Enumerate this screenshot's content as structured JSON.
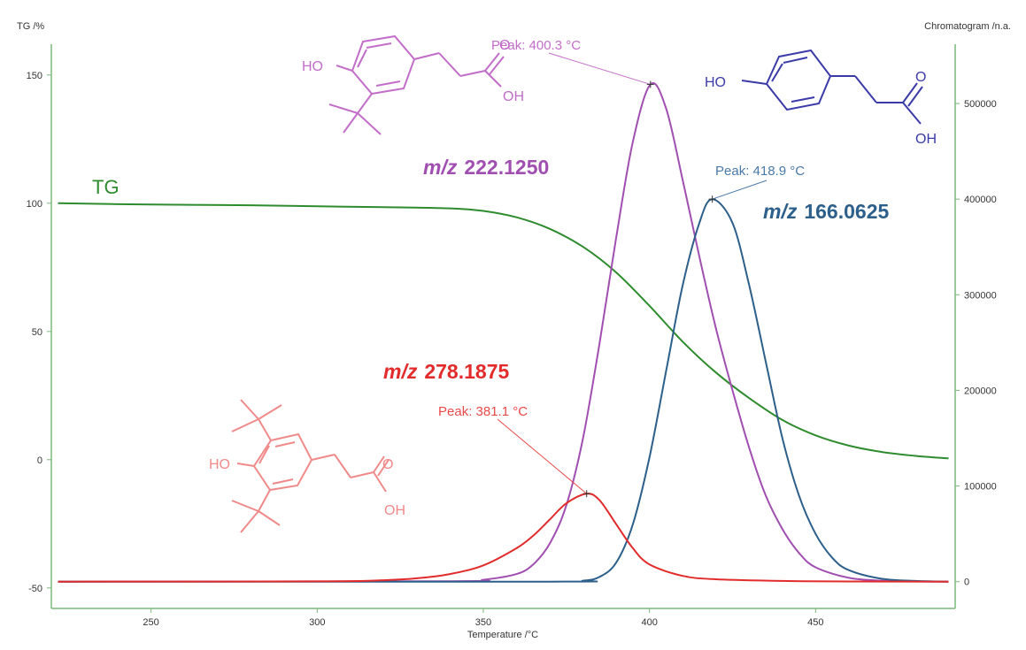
{
  "chart_data": {
    "type": "line",
    "x_axis_title": "Temperature /°C",
    "y_left_title": "TG /%",
    "y_right_title": "Chromatogram /n.a.",
    "xlim": [
      220,
      492
    ],
    "ylim_left": [
      -58,
      162
    ],
    "ylim_right": [
      -28000,
      562000
    ],
    "x_ticks": [
      "250",
      "300",
      "350",
      "400",
      "450"
    ],
    "y_left_ticks": [
      "150",
      "100",
      "50",
      "0",
      "-50"
    ],
    "y_right_ticks": [
      "500000",
      "400000",
      "300000",
      "200000",
      "100000",
      "0"
    ],
    "series": [
      {
        "name": "TG",
        "axis": "left",
        "color": "#2e8b2e",
        "x": [
          222,
          250,
          280,
          300,
          320,
          340,
          350,
          360,
          370,
          380,
          390,
          400,
          410,
          420,
          430,
          440,
          450,
          460,
          470,
          480,
          490
        ],
        "y": [
          100,
          99.5,
          99.2,
          98.8,
          98.5,
          98,
          97,
          94.5,
          90,
          83,
          73,
          60,
          46,
          34,
          24,
          15.5,
          9.5,
          5.5,
          3,
          1.5,
          0.5
        ]
      },
      {
        "name": "m/z 222.1250",
        "axis": "right",
        "color": "#a04fb0",
        "x": [
          222,
          340,
          350,
          360,
          365,
          370,
          375,
          380,
          385,
          390,
          395,
          400.3,
          405,
          410,
          415,
          420,
          425,
          430,
          435,
          440,
          445,
          450,
          460,
          470,
          480,
          490
        ],
        "y": [
          0,
          500,
          2000,
          8000,
          18000,
          40000,
          80000,
          150000,
          250000,
          360000,
          460000,
          520000,
          495000,
          420000,
          340000,
          265000,
          200000,
          140000,
          90000,
          55000,
          30000,
          15000,
          4000,
          1000,
          300,
          0
        ]
      },
      {
        "name": "m/z 166.0625",
        "axis": "right",
        "color": "#2c5f8a",
        "x": [
          222,
          370,
          380,
          385,
          390,
          395,
          400,
          405,
          410,
          415,
          418.9,
          425,
          430,
          435,
          440,
          445,
          450,
          455,
          460,
          470,
          480,
          490
        ],
        "y": [
          0,
          0,
          1000,
          5000,
          20000,
          60000,
          130000,
          220000,
          310000,
          375000,
          400000,
          375000,
          310000,
          230000,
          150000,
          90000,
          50000,
          25000,
          12000,
          3000,
          800,
          0
        ]
      },
      {
        "name": "m/z 278.1875",
        "axis": "right",
        "color": "#e22b2b",
        "x": [
          222,
          300,
          320,
          330,
          340,
          350,
          360,
          365,
          370,
          375,
          381.1,
          385,
          390,
          395,
          400,
          410,
          420,
          440,
          460,
          490
        ],
        "y": [
          0,
          300,
          1500,
          3500,
          8000,
          17000,
          35000,
          48000,
          65000,
          82000,
          92000,
          85000,
          60000,
          35000,
          18000,
          6000,
          2500,
          800,
          200,
          0
        ]
      }
    ],
    "peaks": [
      {
        "label": "Peak: 400.3 °C",
        "x": 400.3,
        "y": 520000,
        "color": "#c26ec9"
      },
      {
        "label": "Peak: 418.9 °C",
        "x": 418.9,
        "y": 400000,
        "color": "#4a7aa8"
      },
      {
        "label": "Peak: 381.1 °C",
        "x": 381.1,
        "y": 92000,
        "color": "#e84a4a"
      }
    ],
    "annotations": {
      "tg_label": "TG",
      "mz_222_prefix": "m/z",
      "mz_222_value": "222.1250",
      "mz_166_prefix": "m/z",
      "mz_166_value": "166.0625",
      "mz_278_prefix": "m/z",
      "mz_278_value": "278.1875",
      "ho": "HO",
      "o": "O",
      "oh": "OH"
    },
    "grid": false,
    "legend": "none"
  }
}
